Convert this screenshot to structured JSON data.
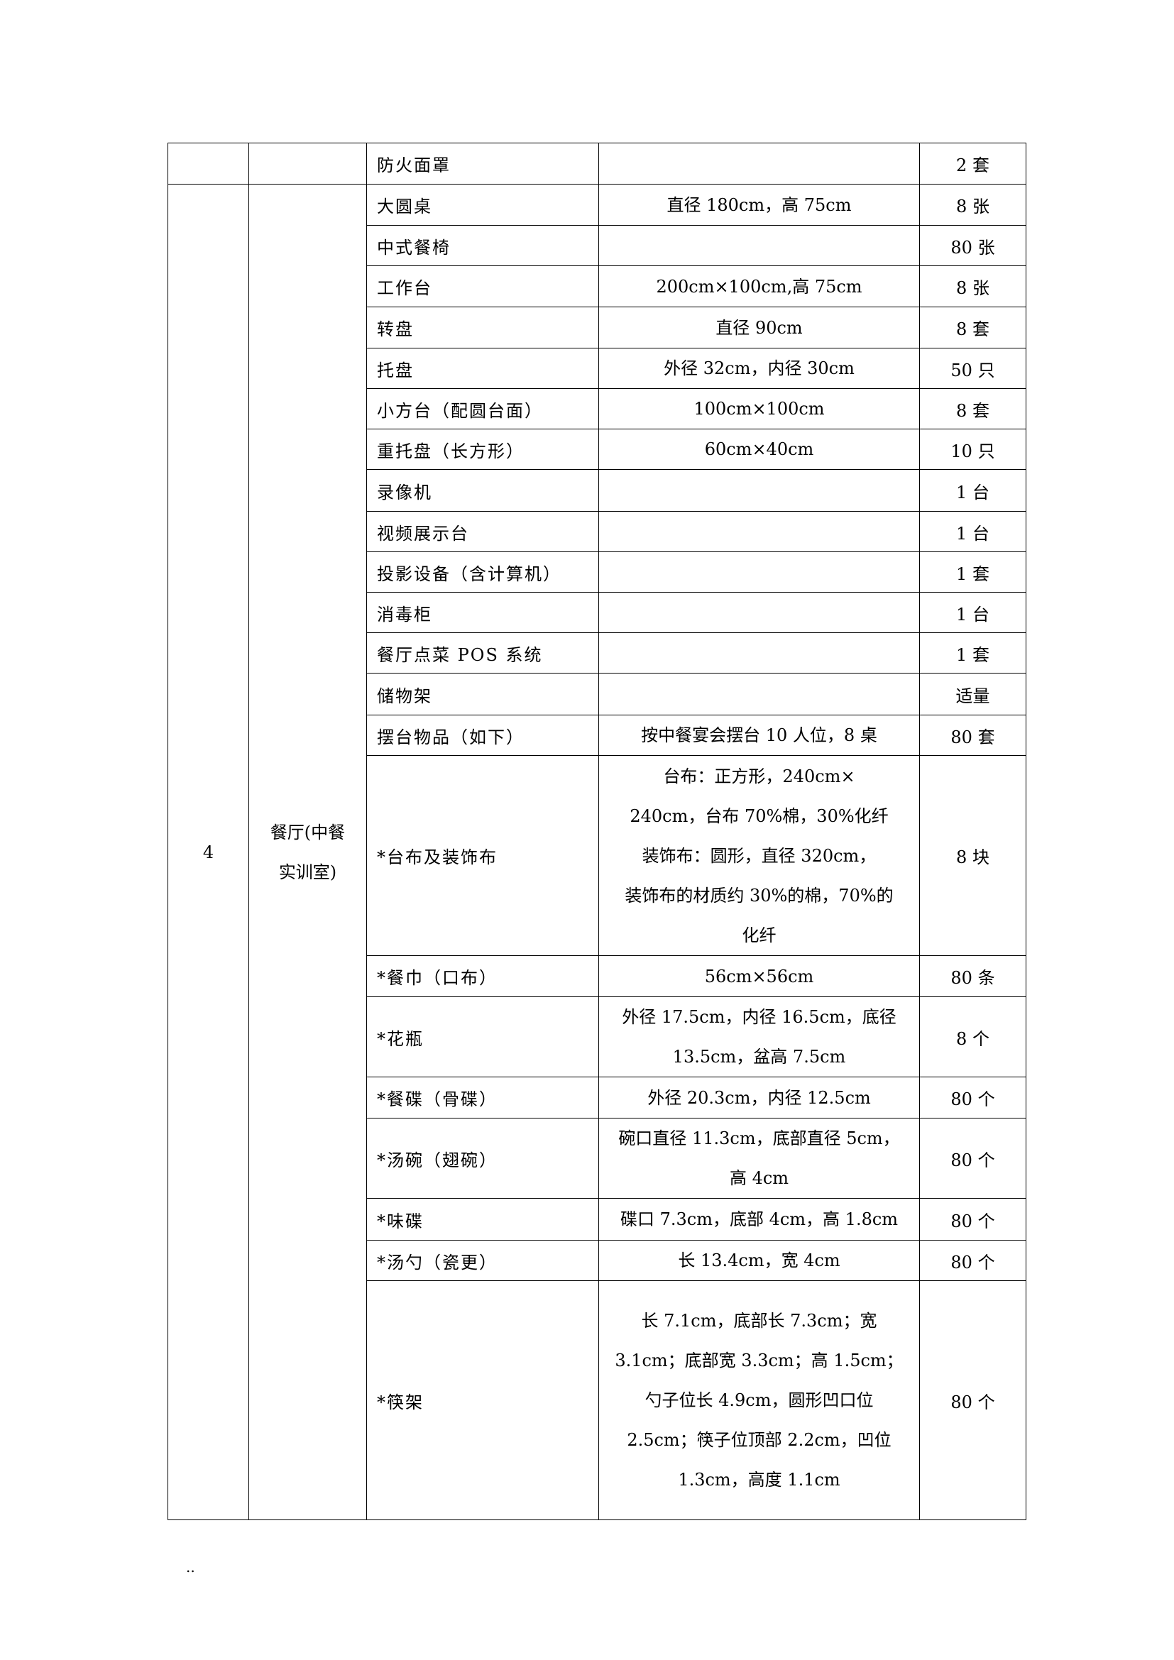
{
  "table": {
    "first_row": {
      "no": "",
      "room": "",
      "name": "防火面罩",
      "spec": "",
      "qty": "2 套"
    },
    "group": {
      "no": "4",
      "room": "餐厅(中餐\n实训室)",
      "rows": [
        {
          "name": "大圆桌",
          "spec": "直径 180cm，高 75cm",
          "qty": "8 张"
        },
        {
          "name": "中式餐椅",
          "spec": "",
          "qty": "80 张"
        },
        {
          "name": "工作台",
          "spec": "200cm×100cm,高 75cm",
          "qty": "8 张"
        },
        {
          "name": "转盘",
          "spec": "直径 90cm",
          "qty": "8 套"
        },
        {
          "name": "托盘",
          "spec": "外径 32cm，内径 30cm",
          "qty": "50 只"
        },
        {
          "name": "小方台（配圆台面）",
          "spec": "100cm×100cm",
          "qty": "8 套"
        },
        {
          "name": "重托盘（长方形）",
          "spec": "60cm×40cm",
          "qty": "10 只"
        },
        {
          "name": "录像机",
          "spec": "",
          "qty": "1 台"
        },
        {
          "name": "视频展示台",
          "spec": "",
          "qty": "1 台"
        },
        {
          "name": "投影设备（含计算机）",
          "spec": "",
          "qty": "1 套"
        },
        {
          "name": "消毒柜",
          "spec": "",
          "qty": "1 台"
        },
        {
          "name": "餐厅点菜 POS 系统",
          "spec": "",
          "qty": "1 套"
        },
        {
          "name": "储物架",
          "spec": "",
          "qty": "适量"
        },
        {
          "name": "摆台物品（如下）",
          "spec": "按中餐宴会摆台 10 人位，8 桌",
          "qty": "80 套"
        },
        {
          "name": "*台布及装饰布",
          "spec": "    台布：正方形，240cm×\n240cm，台布 70%棉，30%化纤\n    装饰布：圆形，直径 320cm，\n装饰布的材质约 30%的棉，70%的\n化纤",
          "qty": "8 块"
        },
        {
          "name": "*餐巾（口布）",
          "spec": "56cm×56cm",
          "qty": "80 条"
        },
        {
          "name": "*花瓶",
          "spec": "外径 17.5cm，内径 16.5cm，底径\n13.5cm，盆高 7.5cm",
          "qty": "8 个"
        },
        {
          "name": "*餐碟（骨碟）",
          "spec": "外径 20.3cm，内径 12.5cm",
          "qty": "80 个"
        },
        {
          "name": "*汤碗（翅碗）",
          "spec": "碗口直径 11.3cm，底部直径 5cm，\n高 4cm",
          "qty": "80 个"
        },
        {
          "name": "*味碟",
          "spec": "碟口 7.3cm，底部 4cm，高 1.8cm",
          "qty": "80 个"
        },
        {
          "name": "*汤勺（瓷更）",
          "spec": "长 13.4cm，宽 4cm",
          "qty": "80 个"
        },
        {
          "name": "*筷架",
          "spec": "长 7.1cm，底部长 7.3cm；宽\n3.1cm；底部宽 3.3cm；高 1.5cm；\n勺子位长 4.9cm，圆形凹口位\n2.5cm；筷子位顶部 2.2cm，凹位\n1.3cm，高度 1.1cm",
          "qty": "80 个"
        }
      ]
    }
  },
  "footer_mark": ".."
}
